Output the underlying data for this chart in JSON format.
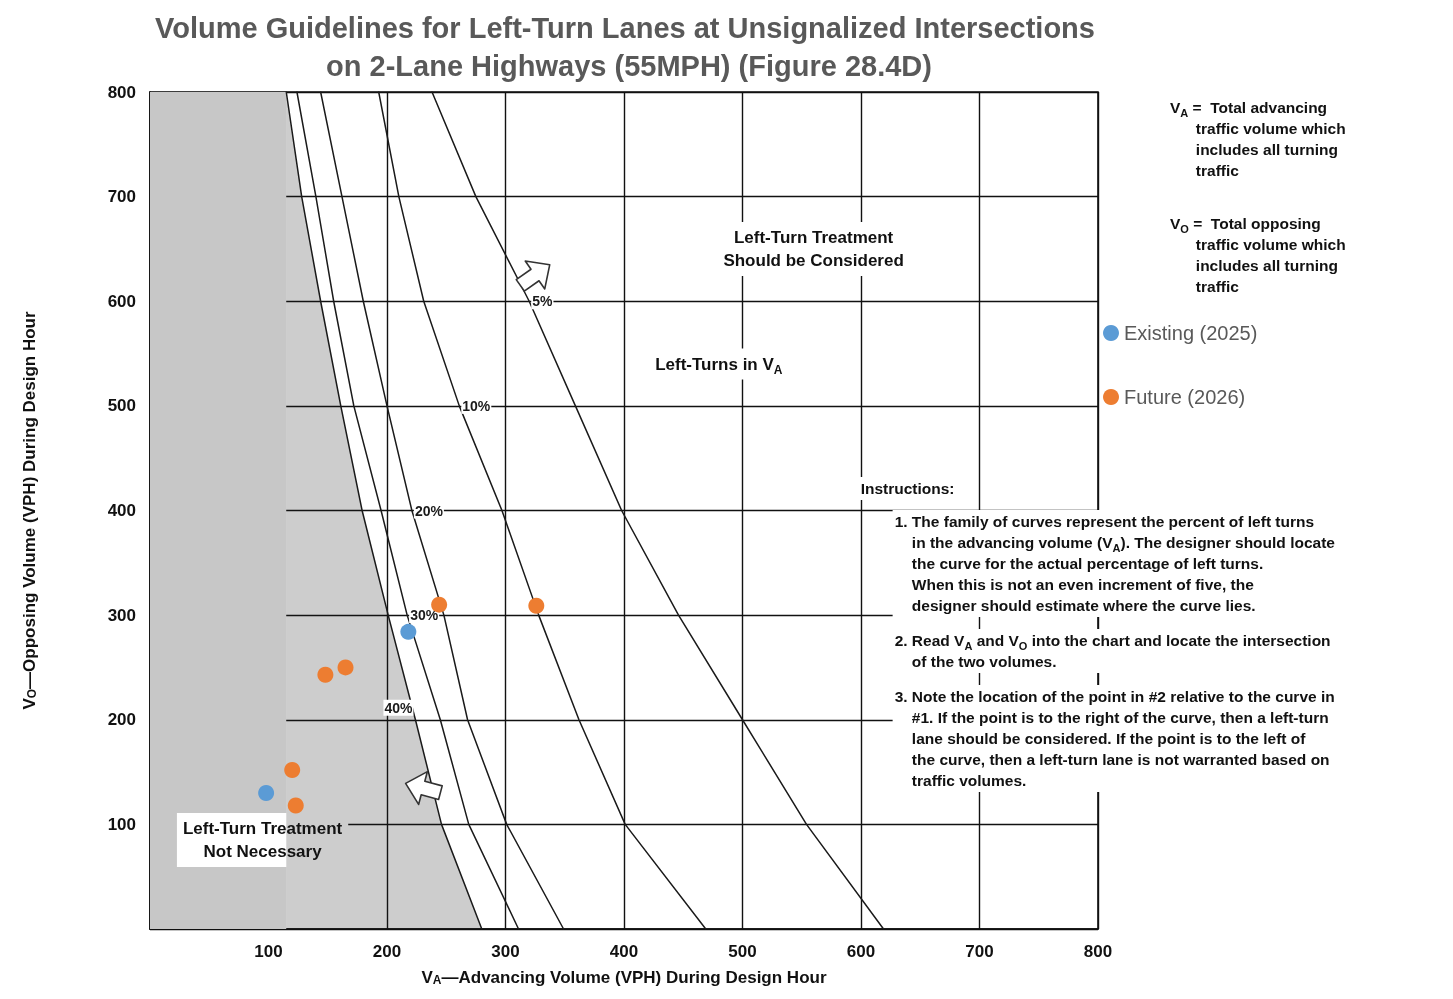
{
  "chart_data": {
    "type": "line",
    "title": "Volume Guidelines for Left-Turn Lanes at Unsignalized Intersections on 2-Lane Highways (55MPH) (Figure 28.4D)",
    "xlabel": "V$_{A}$—Advancing Volume (VPH) During Design Hour",
    "ylabel": "V$_{O}$—Opposing Volume (VPH) During Design Hour",
    "xlim": [
      0,
      800
    ],
    "xticks": [
      100,
      200,
      300,
      400,
      500,
      600,
      700,
      800
    ],
    "ylim": [
      0,
      800
    ],
    "yticks": [
      100,
      200,
      300,
      400,
      500,
      600,
      700,
      800
    ],
    "grid": true,
    "legend": "right",
    "bands": [
      {
        "axis": "x",
        "from": 0,
        "to": 115,
        "color": "#c7c7c7"
      }
    ],
    "series": [
      {
        "name": "5%",
        "color": "#1a1a1a",
        "x": [
          238,
          275,
          320,
          359,
          398,
          446,
          500,
          554,
          619
        ],
        "values": [
          800,
          700,
          600,
          500,
          400,
          300,
          200,
          100,
          0
        ]
      },
      {
        "name": "10%",
        "color": "#1a1a1a",
        "x": [
          193,
          210,
          231,
          261,
          297,
          328,
          362,
          401,
          469
        ],
        "values": [
          800,
          700,
          600,
          500,
          400,
          300,
          200,
          100,
          0
        ]
      },
      {
        "name": "20%",
        "color": "#1a1a1a",
        "x": [
          144,
          162,
          180,
          200,
          221,
          248,
          268,
          301,
          349
        ],
        "values": [
          800,
          700,
          600,
          500,
          400,
          300,
          200,
          100,
          0
        ]
      },
      {
        "name": "30%",
        "color": "#1a1a1a",
        "x": [
          124,
          140,
          155,
          172,
          195,
          217,
          245,
          269,
          311
        ],
        "values": [
          800,
          700,
          600,
          500,
          400,
          300,
          200,
          100,
          0
        ]
      },
      {
        "type": "area",
        "name": "40%",
        "color": "#1a1a1a",
        "x": [
          115,
          128,
          144,
          161,
          179,
          201,
          224,
          246,
          280
        ],
        "values": [
          800,
          700,
          600,
          500,
          400,
          300,
          200,
          100,
          0
        ]
      },
      {
        "type": "scatter",
        "marker": "circle",
        "name": "Existing (2025)",
        "color": "#5b9bd5",
        "x": [
          98,
          218
        ],
        "values": [
          130,
          284
        ]
      },
      {
        "type": "scatter",
        "marker": "circle",
        "name": "Future (2026)",
        "color": "#ed7d31",
        "x": [
          244,
          326,
          148,
          165,
          120,
          123
        ],
        "values": [
          310,
          309,
          243,
          250,
          152,
          118
        ]
      }
    ],
    "annotations": [
      "Left-Turn Treatment\nShould be Considered",
      "Left-Turns in V$_{A}$",
      "Left-Turn Treatment\nNot Necessary",
      "V$_{A}$ =  Total advancing\n      traffic volume which\n      includes all turning\n      traffic",
      "V$_{O}$ =  Total opposing\n      traffic volume which\n      includes all turning\n      traffic",
      "Instructions:",
      "1. The family of curves represent the percent of left turns\n    in the advancing volume (V$_{A}$). The designer should locate\n    the curve for the actual percentage of left turns.\n    When this is not an even increment of five, the\n    designer should estimate where the curve lies.",
      "2. Read V$_{A}$ and V$_{O}$ into the chart and locate the intersection\n    of the two volumes.",
      "3. Note the location of the point in #2 relative to the curve in\n    #1. If the point is to the right of the curve, then a left-turn\n    lane should be considered. If the point is to the left of\n    the curve, then a left-turn lane is not warranted based on\n    traffic volumes."
    ]
  }
}
